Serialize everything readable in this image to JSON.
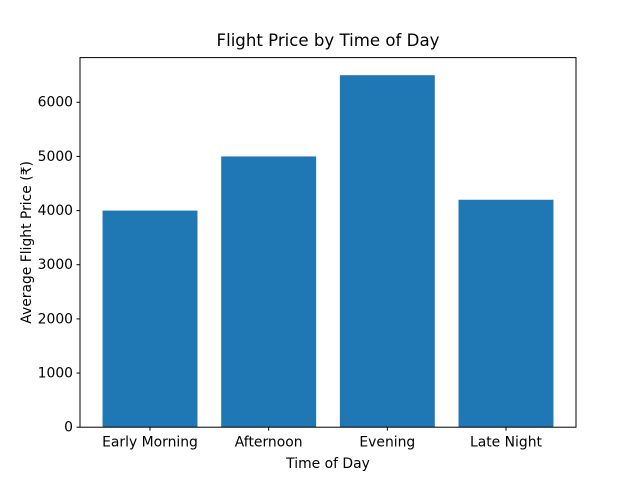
{
  "chart_data": {
    "type": "bar",
    "title": "Flight Price by Time of Day",
    "xlabel": "Time of Day",
    "ylabel": "Average Flight Price (₹)",
    "categories": [
      "Early Morning",
      "Afternoon",
      "Evening",
      "Late Night"
    ],
    "values": [
      4000,
      5000,
      6500,
      4200
    ],
    "yticks": [
      0,
      1000,
      2000,
      3000,
      4000,
      5000,
      6000
    ],
    "ylim": [
      0,
      6825
    ],
    "xlim": [
      -0.59,
      3.59
    ],
    "bar_width": 0.8,
    "bar_color": "#1f77b4",
    "spine_color": "#000000",
    "background_color": "#ffffff",
    "grid": false,
    "legend": null
  }
}
